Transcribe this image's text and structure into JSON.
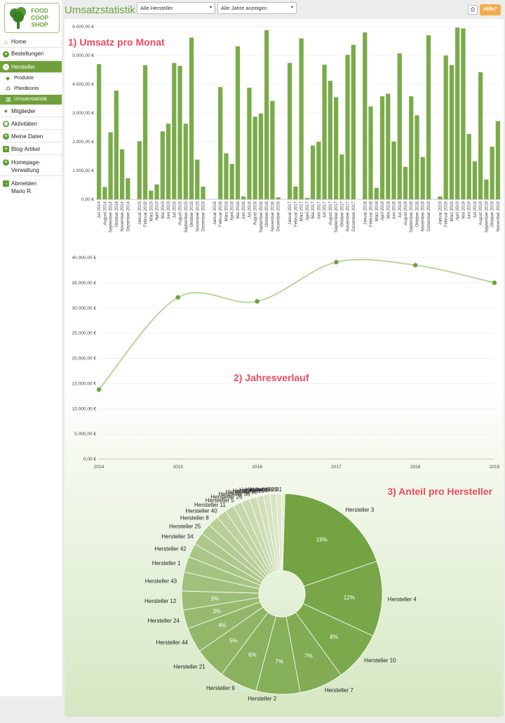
{
  "logo": {
    "line1": "FOOD",
    "line2": "COOP",
    "line3": "SHOP"
  },
  "nav": {
    "home": "Home",
    "bestellungen": "Bestellungen",
    "hersteller": "Hersteller",
    "produkte": "Produkte",
    "pfandkonto": "Pfandkonto",
    "umsatzstatistik": "Umsatzstatistik",
    "mitglieder": "Mitglieder",
    "aktivitaeten": "Aktivitäten",
    "meine_daten": "Meine Daten",
    "blog": "Blog-Artikel",
    "homepage_1": "Homepage-",
    "homepage_2": "Verwaltung",
    "abmelden": "Abmelden",
    "user": "Mario R."
  },
  "header": {
    "title": "Umsatzstatistik",
    "filter_hersteller": "Alle Hersteller",
    "filter_jahre": "Alle Jahre anzeigen",
    "help": "Hilfe?"
  },
  "icons": {
    "home": "home-icon",
    "plus": "plus-circle-icon",
    "minus": "minus-circle-icon",
    "tag": "tags-icon",
    "recycle": "recycle-icon",
    "chart": "bar-chart-icon",
    "user": "user-icon",
    "eye": "eye-icon",
    "file": "file-icon",
    "signout": "sign-out-icon",
    "print": "print-icon"
  },
  "colors": {
    "accent": "#6aa33a",
    "bar": "#7aab49",
    "annotation": "#ef4a5c",
    "help": "#f0ad4e"
  },
  "chart_data": [
    {
      "type": "bar",
      "title": "1) Umsatz pro Monat",
      "ylim": [
        0,
        6000
      ],
      "yticks": [
        "0,00 €",
        "1.000,00 €",
        "2.000,00 €",
        "3.000,00 €",
        "4.000,00 €",
        "5.000,00 €",
        "6.000,00 €"
      ],
      "categories": [
        "Juli 2014",
        "August 2014",
        "September 2014",
        "Oktober 2014",
        "November 2014",
        "Dezember 2014",
        "",
        "Januar 2015",
        "Februar 2015",
        "März 2015",
        "April 2015",
        "Mai 2015",
        "Juni 2015",
        "Juli 2015",
        "August 2015",
        "September 2015",
        "Oktober 2015",
        "November 2015",
        "Dezember 2015",
        "",
        "Januar 2016",
        "Februar 2016",
        "März 2016",
        "April 2016",
        "Mai 2016",
        "Juni 2016",
        "Juli 2016",
        "August 2016",
        "September 2016",
        "Oktober 2016",
        "November 2016",
        "Dezember 2016",
        "",
        "Januar 2017",
        "Februar 2017",
        "März 2017",
        "April 2017",
        "Mai 2017",
        "Juni 2017",
        "Juli 2017",
        "August 2017",
        "September 2017",
        "Oktober 2017",
        "November 2017",
        "Dezember 2017",
        "",
        "Januar 2018",
        "Februar 2018",
        "März 2018",
        "April 2018",
        "Mai 2018",
        "Juni 2018",
        "Juli 2018",
        "August 2018",
        "September 2018",
        "Oktober 2018",
        "November 2018",
        "Dezember 2018",
        "",
        "Januar 2019",
        "Februar 2019",
        "März 2019",
        "April 2019",
        "Mai 2019",
        "Juni 2019",
        "Juli 2019",
        "August 2019",
        "September 2019",
        "Oktober 2019",
        "November 2019"
      ],
      "values": [
        4700,
        430,
        2330,
        3780,
        1740,
        730,
        0,
        2020,
        4660,
        300,
        520,
        2360,
        2630,
        4740,
        4640,
        2630,
        5620,
        1380,
        440,
        0,
        0,
        3900,
        1600,
        1230,
        5320,
        100,
        3880,
        2870,
        2980,
        5880,
        3420,
        70,
        0,
        4740,
        450,
        5590,
        50,
        1870,
        2000,
        4680,
        4120,
        3550,
        1560,
        5020,
        5370,
        0,
        5800,
        3230,
        400,
        3580,
        3670,
        2010,
        5070,
        1130,
        3580,
        2920,
        1470,
        5700,
        0,
        100,
        5000,
        4670,
        5970,
        5940,
        2270,
        1320,
        4420,
        690,
        1830,
        2720
      ]
    },
    {
      "type": "line",
      "title": "2) Jahresverlauf",
      "ylim": [
        0,
        40000
      ],
      "yticks": [
        "0,00 €",
        "5.000,00 €",
        "10.000,00 €",
        "15.000,00 €",
        "20.000,00 €",
        "25.000,00 €",
        "30.000,00 €",
        "35.000,00 €",
        "40.000,00 €"
      ],
      "x": [
        "2014",
        "2015",
        "2016",
        "2017",
        "2018",
        "2019"
      ],
      "values": [
        13800,
        32100,
        31300,
        39100,
        38500,
        35000
      ]
    },
    {
      "type": "pie",
      "title": "3) Anteil pro Hersteller",
      "labels": [
        "Hersteller 3",
        "Hersteller 4",
        "Hersteller 10",
        "Hersteller 7",
        "Hersteller 2",
        "Hersteller 9",
        "Hersteller 21",
        "Hersteller 44",
        "Hersteller 24",
        "Hersteller 12",
        "Hersteller 43",
        "Hersteller 1",
        "Hersteller 42",
        "Hersteller 34",
        "Hersteller 25",
        "Hersteller 8",
        "Hersteller 40",
        "Hersteller 11",
        "Hersteller 5",
        "Hersteller 26",
        "Hersteller 36",
        "Hersteller 30",
        "Hersteller 29",
        "Hersteller 17",
        "Hersteller 28",
        "Hersteller 31"
      ],
      "values": [
        19,
        12,
        8,
        7,
        7,
        6,
        5,
        4,
        3,
        3,
        3,
        2.5,
        2.2,
        2,
        1.8,
        1.7,
        1.6,
        1.5,
        1.4,
        1.3,
        1.2,
        1.1,
        1,
        1,
        0.9,
        0.5
      ],
      "pct_labels": [
        "19%",
        "12%",
        "8%",
        "7%",
        "7%",
        "6%",
        "5%",
        "4%",
        "3%",
        "3%"
      ]
    }
  ]
}
